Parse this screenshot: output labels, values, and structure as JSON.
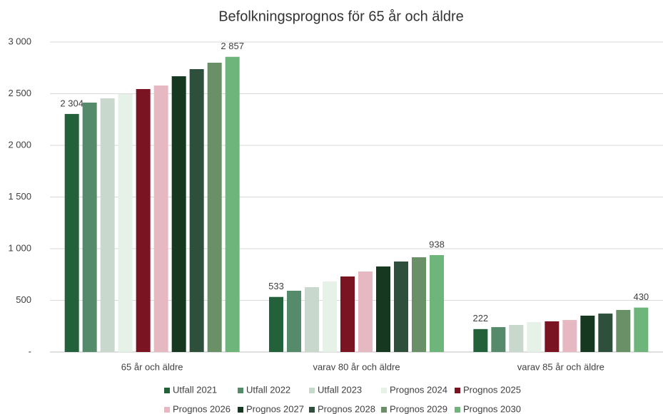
{
  "chart_data": {
    "type": "bar",
    "title": "Befolkningsprognos för 65 år och äldre",
    "categories": [
      "65 år och äldre",
      "varav 80 år och äldre",
      "varav 85 år och äldre"
    ],
    "series": [
      {
        "name": "Utfall 2021",
        "color": "#22613a",
        "values": [
          2304,
          533,
          222
        ],
        "value_labels": [
          "2 304",
          "533",
          "222"
        ]
      },
      {
        "name": "Utfall 2022",
        "color": "#558a6b",
        "values": [
          2414,
          593,
          241
        ]
      },
      {
        "name": "Utfall 2023",
        "color": "#c9d8cc",
        "values": [
          2455,
          628,
          262
        ]
      },
      {
        "name": "Prognos 2024",
        "color": "#e6f2e7",
        "values": [
          2497,
          683,
          290
        ]
      },
      {
        "name": "Prognos 2025",
        "color": "#7a1422",
        "values": [
          2545,
          731,
          297
        ]
      },
      {
        "name": "Prognos 2026",
        "color": "#e6b8c2",
        "values": [
          2579,
          779,
          310
        ]
      },
      {
        "name": "Prognos 2027",
        "color": "#163820",
        "values": [
          2669,
          828,
          352
        ]
      },
      {
        "name": "Prognos 2028",
        "color": "#2f4f3d",
        "values": [
          2738,
          876,
          372
        ]
      },
      {
        "name": "Prognos 2029",
        "color": "#6a9068",
        "values": [
          2800,
          917,
          407
        ]
      },
      {
        "name": "Prognos 2030",
        "color": "#6db57a",
        "values": [
          2857,
          938,
          430
        ],
        "value_labels": [
          "2 857",
          "938",
          "430"
        ]
      }
    ],
    "ylim": [
      0,
      3000
    ],
    "yticks": [
      {
        "value": 0,
        "label": "-"
      },
      500,
      {
        "value": 1000,
        "label": "1 000"
      },
      {
        "value": 1500,
        "label": "1 500"
      },
      {
        "value": 2000,
        "label": "2 000"
      },
      {
        "value": 2500,
        "label": "2 500"
      },
      {
        "value": 3000,
        "label": "3 000"
      }
    ],
    "grid": true
  }
}
